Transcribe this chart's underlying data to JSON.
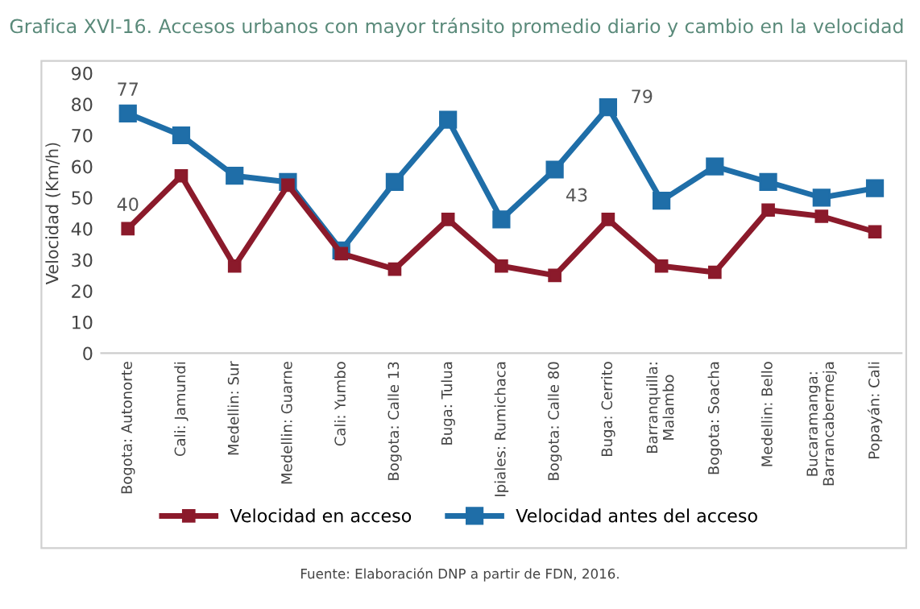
{
  "chart_data": {
    "type": "line",
    "title": "Grafica XVI-16. Accesos urbanos con mayor tránsito promedio diario y cambio en la velocidad",
    "ylabel": "Velocidad (Km/h)",
    "categories": [
      "Bogota: Autonorte",
      "Cali: Jamundi",
      "Medellin: Sur",
      "Medellin: Guarne",
      "Cali: Yumbo",
      "Bogota: Calle 13",
      "Buga: Tulua",
      "Ipiales: Rumichaca",
      "Bogota: Calle 80",
      "Buga: Cerrito",
      "Barranquilla:\nMalambo",
      "Bogota: Soacha",
      "Medellin: Bello",
      "Bucaramanga:\nBarrancabermeja",
      "Popayán: Cali"
    ],
    "series": [
      {
        "name": "Velocidad en acceso",
        "color": "#8b1a2b",
        "values": [
          40,
          57,
          28,
          54,
          32,
          27,
          43,
          28,
          25,
          43,
          28,
          26,
          46,
          44,
          39
        ],
        "value_labels": [
          "40",
          null,
          null,
          null,
          null,
          null,
          null,
          null,
          null,
          "43",
          null,
          null,
          null,
          null,
          null
        ]
      },
      {
        "name": "Velocidad antes del acceso",
        "color": "#1f6ea8",
        "values": [
          77,
          70,
          57,
          55,
          33,
          55,
          75,
          43,
          59,
          79,
          49,
          60,
          55,
          50,
          53
        ],
        "value_labels": [
          "77",
          null,
          null,
          null,
          null,
          null,
          null,
          null,
          null,
          "79",
          null,
          null,
          null,
          null,
          null
        ]
      }
    ],
    "ylim": [
      0,
      90
    ],
    "yticks": [
      0,
      10,
      20,
      30,
      40,
      50,
      60,
      70,
      80,
      90
    ],
    "grid": false,
    "legend": "bottom",
    "marker": "square",
    "line_style": "solid",
    "annotations": [
      "Fuente: Elaboración DNP a partir de FDN, 2016."
    ]
  }
}
